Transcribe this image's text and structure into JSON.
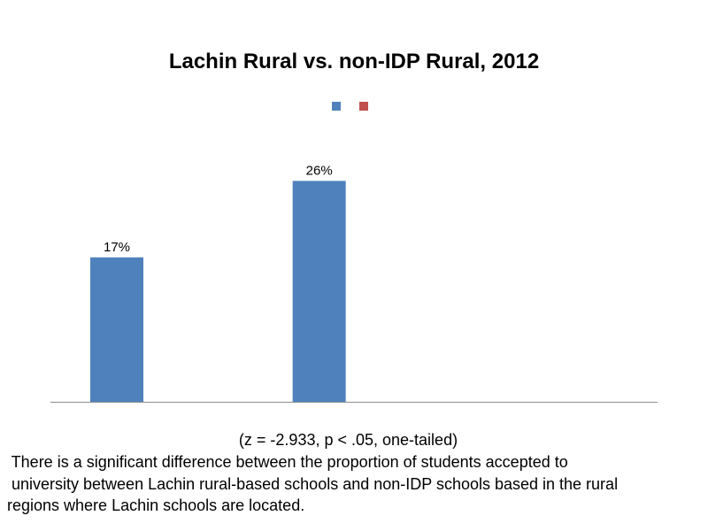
{
  "chart_data": {
    "type": "bar",
    "title": "Lachin Rural vs. non-IDP Rural, 2012",
    "categories": [
      "",
      ""
    ],
    "series": [
      {
        "values": [
          17,
          26
        ],
        "color": "#4f81bd"
      },
      {
        "values": [
          null,
          null
        ],
        "color": "#c0504d"
      }
    ],
    "data_labels": [
      "17%",
      "26%"
    ],
    "ylim": [
      0,
      45
    ],
    "grid": false,
    "legend": "top-center",
    "xlabel": "",
    "ylabel": ""
  },
  "footnote": {
    "statistic": "(z = -2.933, p < .05, one-tailed)",
    "lines": [
      " There is a significant difference between the proportion of students accepted to",
      " university between Lachin rural-based schools and non-IDP schools based in the rural",
      "regions where Lachin schools are located."
    ]
  }
}
